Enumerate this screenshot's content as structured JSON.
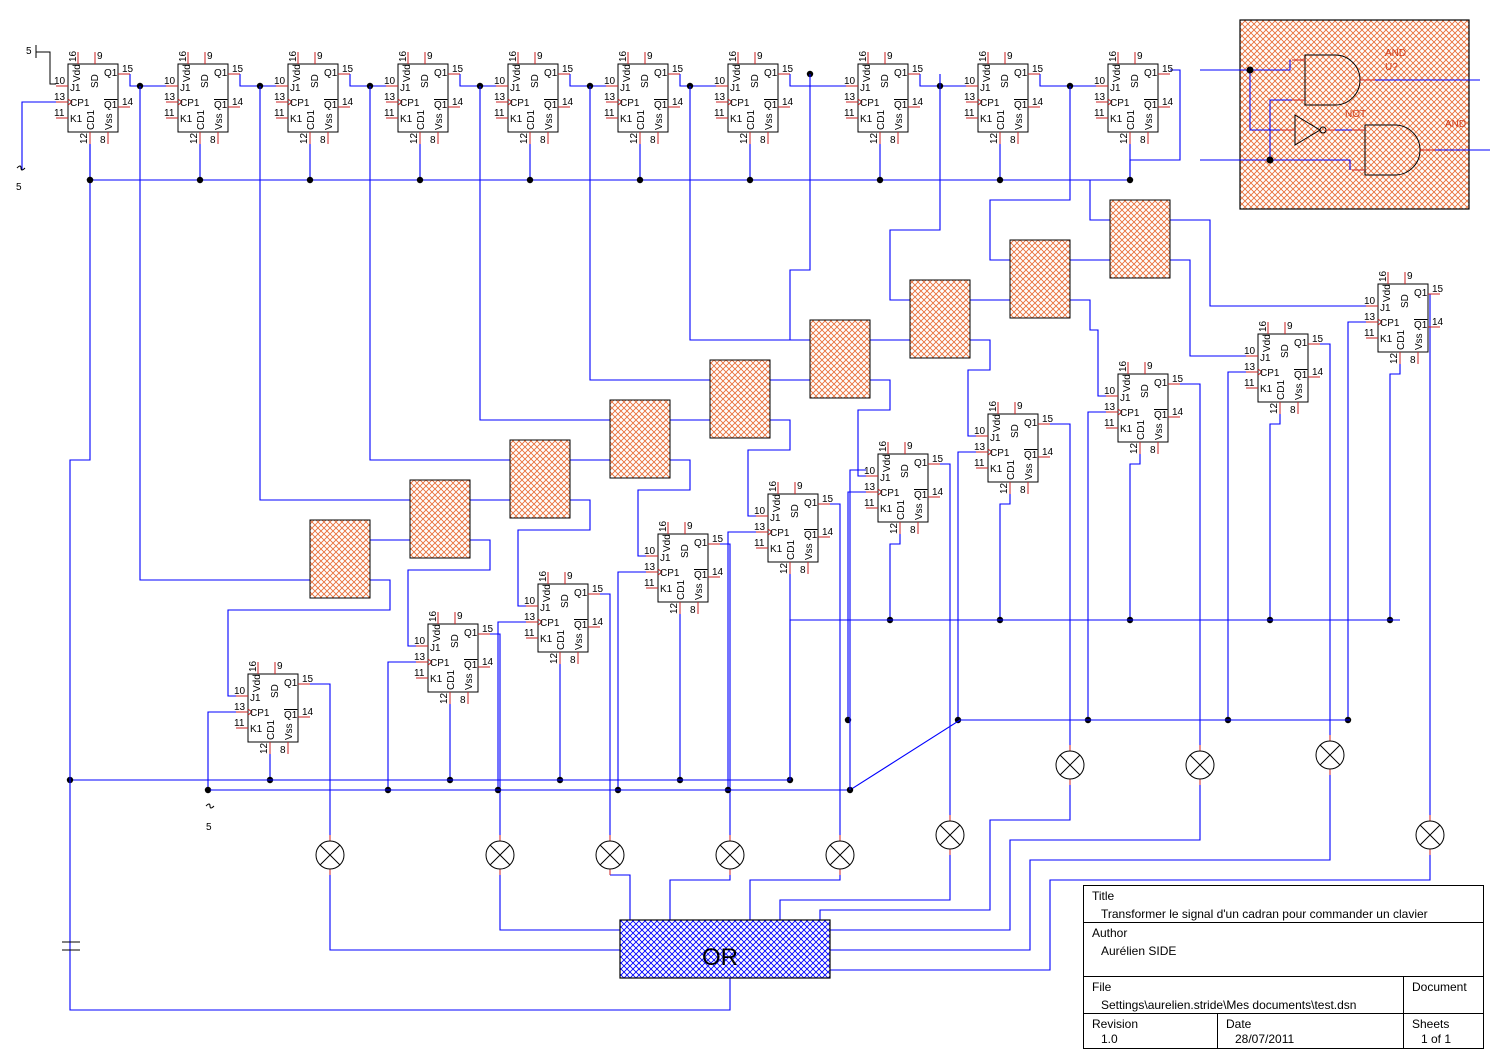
{
  "colors": {
    "wire": "#0000ff",
    "pin": "#cc2222",
    "outline": "#000000",
    "hatch_orange": "#e8703a",
    "hatch_blue": "#0000ff",
    "junction": "#000000"
  },
  "power_labels": [
    "5",
    "5",
    "5"
  ],
  "flipflop": {
    "pin_numbers": {
      "vdd": "16",
      "sd": "9",
      "j": "10",
      "cp": "13",
      "k": "11",
      "q": "15",
      "qn": "14",
      "cd": "12",
      "vss": "8"
    },
    "pin_names": {
      "vdd": "Vdd",
      "sd": "SD",
      "j": "J1",
      "cp": "CP1",
      "k": "K1",
      "q": "Q1",
      "qn": "Q1",
      "cd": "CD1",
      "vss": "Vss"
    }
  },
  "legend": {
    "and1": "AND",
    "ref": "U?",
    "not": "NOT",
    "and2": "AND"
  },
  "or_gate": {
    "label": "OR"
  },
  "title_block": {
    "title_label": "Title",
    "title": "Transformer le signal d'un cadran pour commander un clavier",
    "author_label": "Author",
    "author": "Aurélien SIDE",
    "file_label": "File",
    "file": "Settings\\aurelien.stride\\Mes documents\\test.dsn",
    "document_label": "Document",
    "revision_label": "Revision",
    "revision": "1.0",
    "date_label": "Date",
    "date": "28/07/2011",
    "sheets_label": "Sheets",
    "sheets": "1 of 1"
  }
}
